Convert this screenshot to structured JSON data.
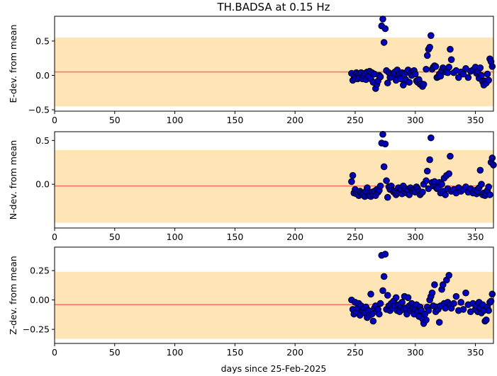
{
  "title": "TH.BADSA at 0.15 Hz",
  "xlabel": "days since 25-Feb-2025",
  "colors": {
    "band": "#ffe4b5",
    "mean_line": "#ff6f61",
    "marker_fill": "#0000cc",
    "marker_edge": "#000000"
  },
  "chart_data": [
    {
      "type": "scatter",
      "ylabel": "E-dev. from mean",
      "xlim": [
        0,
        365
      ],
      "ylim": [
        -0.52,
        0.86
      ],
      "xticks": [
        0,
        50,
        100,
        150,
        200,
        250,
        300,
        350
      ],
      "yticks": [
        -0.5,
        0.0,
        0.5
      ],
      "ytick_labels": [
        "−0.5",
        "0.0",
        "0.5"
      ],
      "band": [
        -0.45,
        0.55
      ],
      "mean": 0.05,
      "points": [
        [
          247,
          0.03
        ],
        [
          248,
          -0.07
        ],
        [
          249,
          0.0
        ],
        [
          250,
          -0.04
        ],
        [
          251,
          0.04
        ],
        [
          252,
          -0.05
        ],
        [
          253,
          0.02
        ],
        [
          254,
          -0.03
        ],
        [
          255,
          0.04
        ],
        [
          256,
          -0.05
        ],
        [
          257,
          0.0
        ],
        [
          258,
          0.03
        ],
        [
          259,
          -0.06
        ],
        [
          260,
          0.05
        ],
        [
          261,
          -0.02
        ],
        [
          262,
          0.06
        ],
        [
          263,
          -0.05
        ],
        [
          264,
          0.04
        ],
        [
          265,
          -0.1
        ],
        [
          266,
          0.02
        ],
        [
          267,
          -0.19
        ],
        [
          268,
          -0.13
        ],
        [
          269,
          -0.08
        ],
        [
          270,
          0.0
        ],
        [
          271,
          -0.02
        ],
        [
          272,
          0.72
        ],
        [
          273,
          0.82
        ],
        [
          274,
          0.48
        ],
        [
          275,
          0.68
        ],
        [
          276,
          0.07
        ],
        [
          277,
          -0.11
        ],
        [
          278,
          0.04
        ],
        [
          279,
          -0.03
        ],
        [
          280,
          0.02
        ],
        [
          281,
          -0.02
        ],
        [
          282,
          0.03
        ],
        [
          283,
          0.05
        ],
        [
          284,
          -0.07
        ],
        [
          285,
          0.08
        ],
        [
          286,
          0.01
        ],
        [
          287,
          0.03
        ],
        [
          288,
          -0.05
        ],
        [
          289,
          0.04
        ],
        [
          290,
          -0.14
        ],
        [
          291,
          0.02
        ],
        [
          292,
          -0.06
        ],
        [
          293,
          0.05
        ],
        [
          294,
          0.08
        ],
        [
          295,
          -0.1
        ],
        [
          296,
          0.03
        ],
        [
          297,
          0.0
        ],
        [
          298,
          0.06
        ],
        [
          299,
          0.07
        ],
        [
          300,
          0.02
        ],
        [
          301,
          -0.08
        ],
        [
          302,
          -0.1
        ],
        [
          303,
          -0.06
        ],
        [
          304,
          -0.13
        ],
        [
          305,
          -0.12
        ],
        [
          306,
          -0.16
        ],
        [
          307,
          -0.13
        ],
        [
          309,
          0.09
        ],
        [
          310,
          0.29
        ],
        [
          311,
          0.38
        ],
        [
          312,
          0.41
        ],
        [
          313,
          0.58
        ],
        [
          314,
          0.09
        ],
        [
          315,
          0.12
        ],
        [
          316,
          0.14
        ],
        [
          317,
          0.13
        ],
        [
          318,
          -0.03
        ],
        [
          319,
          -0.02
        ],
        [
          320,
          0.02
        ],
        [
          321,
          -0.01
        ],
        [
          322,
          0.07
        ],
        [
          323,
          0.11
        ],
        [
          324,
          0.09
        ],
        [
          325,
          0.05
        ],
        [
          326,
          0.07
        ],
        [
          327,
          0.04
        ],
        [
          328,
          0.12
        ],
        [
          329,
          0.38
        ],
        [
          330,
          0.23
        ],
        [
          332,
          0.04
        ],
        [
          334,
          0.07
        ],
        [
          336,
          -0.03
        ],
        [
          338,
          0.05
        ],
        [
          340,
          0.02
        ],
        [
          342,
          0.1
        ],
        [
          344,
          -0.03
        ],
        [
          346,
          0.06
        ],
        [
          348,
          0.08
        ],
        [
          350,
          0.12
        ],
        [
          351,
          0.03
        ],
        [
          352,
          0.06
        ],
        [
          353,
          -0.04
        ],
        [
          354,
          0.11
        ],
        [
          355,
          0.0
        ],
        [
          356,
          -0.09
        ],
        [
          357,
          -0.14
        ],
        [
          358,
          -0.08
        ],
        [
          359,
          -0.11
        ],
        [
          360,
          0.02
        ],
        [
          361,
          -0.07
        ],
        [
          362,
          0.24
        ],
        [
          363,
          0.2
        ],
        [
          364,
          0.13
        ]
      ]
    },
    {
      "type": "scatter",
      "ylabel": "N-dev. from mean",
      "xlim": [
        0,
        365
      ],
      "ylim": [
        -0.5,
        0.6
      ],
      "xticks": [
        0,
        50,
        100,
        150,
        200,
        250,
        300,
        350
      ],
      "yticks": [
        0.0,
        0.5
      ],
      "ytick_labels": [
        "0.0",
        "0.5"
      ],
      "band": [
        -0.44,
        0.39
      ],
      "mean": -0.02,
      "points": [
        [
          247,
          0.03
        ],
        [
          248,
          0.1
        ],
        [
          249,
          -0.1
        ],
        [
          250,
          -0.06
        ],
        [
          251,
          -0.11
        ],
        [
          252,
          -0.09
        ],
        [
          253,
          -0.13
        ],
        [
          254,
          -0.08
        ],
        [
          255,
          -0.1
        ],
        [
          256,
          -0.12
        ],
        [
          257,
          -0.11
        ],
        [
          258,
          -0.14
        ],
        [
          259,
          -0.08
        ],
        [
          260,
          -0.04
        ],
        [
          261,
          -0.13
        ],
        [
          262,
          -0.12
        ],
        [
          263,
          -0.14
        ],
        [
          264,
          -0.09
        ],
        [
          265,
          -0.12
        ],
        [
          266,
          -0.08
        ],
        [
          267,
          -0.13
        ],
        [
          268,
          -0.06
        ],
        [
          269,
          -0.09
        ],
        [
          270,
          -0.07
        ],
        [
          271,
          -0.02
        ],
        [
          272,
          0.47
        ],
        [
          273,
          0.57
        ],
        [
          274,
          0.2
        ],
        [
          275,
          0.46
        ],
        [
          276,
          0.04
        ],
        [
          277,
          -0.15
        ],
        [
          278,
          -0.03
        ],
        [
          279,
          -0.06
        ],
        [
          280,
          -0.02
        ],
        [
          281,
          -0.07
        ],
        [
          282,
          -0.09
        ],
        [
          283,
          -0.08
        ],
        [
          284,
          -0.12
        ],
        [
          285,
          -0.1
        ],
        [
          286,
          -0.04
        ],
        [
          287,
          -0.09
        ],
        [
          288,
          -0.06
        ],
        [
          289,
          -0.11
        ],
        [
          290,
          -0.02
        ],
        [
          291,
          -0.08
        ],
        [
          292,
          -0.05
        ],
        [
          293,
          -0.1
        ],
        [
          294,
          -0.07
        ],
        [
          295,
          -0.12
        ],
        [
          296,
          -0.04
        ],
        [
          297,
          -0.07
        ],
        [
          298,
          -0.08
        ],
        [
          299,
          -0.06
        ],
        [
          300,
          -0.09
        ],
        [
          301,
          -0.03
        ],
        [
          302,
          -0.05
        ],
        [
          303,
          -0.08
        ],
        [
          304,
          -0.12
        ],
        [
          305,
          -0.1
        ],
        [
          306,
          -0.09
        ],
        [
          307,
          0.0
        ],
        [
          309,
          0.04
        ],
        [
          310,
          0.15
        ],
        [
          311,
          -0.05
        ],
        [
          312,
          0.28
        ],
        [
          313,
          0.53
        ],
        [
          314,
          0.02
        ],
        [
          315,
          -0.02
        ],
        [
          316,
          0.03
        ],
        [
          317,
          -0.03
        ],
        [
          318,
          -0.05
        ],
        [
          319,
          -0.04
        ],
        [
          320,
          0.02
        ],
        [
          321,
          -0.1
        ],
        [
          322,
          0.0
        ],
        [
          323,
          -0.08
        ],
        [
          324,
          0.07
        ],
        [
          325,
          -0.12
        ],
        [
          326,
          0.1
        ],
        [
          327,
          -0.05
        ],
        [
          328,
          0.12
        ],
        [
          329,
          0.32
        ],
        [
          330,
          -0.08
        ],
        [
          332,
          -0.06
        ],
        [
          334,
          -0.1
        ],
        [
          336,
          -0.04
        ],
        [
          338,
          -0.08
        ],
        [
          340,
          -0.06
        ],
        [
          342,
          -0.03
        ],
        [
          344,
          -0.09
        ],
        [
          346,
          -0.05
        ],
        [
          348,
          -0.1
        ],
        [
          350,
          -0.07
        ],
        [
          351,
          -0.11
        ],
        [
          352,
          -0.08
        ],
        [
          353,
          -0.04
        ],
        [
          354,
          0.16
        ],
        [
          355,
          0.0
        ],
        [
          356,
          -0.12
        ],
        [
          357,
          -0.1
        ],
        [
          358,
          -0.13
        ],
        [
          359,
          -0.11
        ],
        [
          360,
          -0.07
        ],
        [
          361,
          -0.03
        ],
        [
          362,
          -0.12
        ],
        [
          363,
          0.25
        ],
        [
          364,
          0.3
        ],
        [
          365,
          0.22
        ]
      ]
    },
    {
      "type": "scatter",
      "ylabel": "Z-dev. from mean",
      "xlim": [
        0,
        365
      ],
      "ylim": [
        -0.37,
        0.45
      ],
      "xticks": [
        0,
        50,
        100,
        150,
        200,
        250,
        300,
        350
      ],
      "yticks": [
        -0.25,
        0.0,
        0.25
      ],
      "ytick_labels": [
        "−0.25",
        "0.00",
        "0.25"
      ],
      "band": [
        -0.33,
        0.24
      ],
      "mean": -0.04,
      "points": [
        [
          247,
          0.0
        ],
        [
          248,
          -0.08
        ],
        [
          249,
          -0.12
        ],
        [
          250,
          -0.02
        ],
        [
          251,
          -0.1
        ],
        [
          252,
          -0.07
        ],
        [
          253,
          -0.03
        ],
        [
          254,
          -0.13
        ],
        [
          255,
          -0.05
        ],
        [
          256,
          -0.09
        ],
        [
          257,
          -0.07
        ],
        [
          258,
          -0.11
        ],
        [
          259,
          -0.06
        ],
        [
          260,
          -0.15
        ],
        [
          261,
          -0.09
        ],
        [
          262,
          -0.13
        ],
        [
          263,
          0.05
        ],
        [
          264,
          -0.12
        ],
        [
          265,
          -0.18
        ],
        [
          266,
          -0.07
        ],
        [
          267,
          -0.05
        ],
        [
          268,
          -0.1
        ],
        [
          269,
          -0.08
        ],
        [
          270,
          -0.12
        ],
        [
          271,
          -0.03
        ],
        [
          272,
          0.38
        ],
        [
          273,
          0.08
        ],
        [
          274,
          0.2
        ],
        [
          275,
          0.39
        ],
        [
          276,
          -0.08
        ],
        [
          277,
          0.04
        ],
        [
          278,
          -0.05
        ],
        [
          279,
          -0.09
        ],
        [
          280,
          -0.03
        ],
        [
          281,
          -0.07
        ],
        [
          282,
          -0.01
        ],
        [
          283,
          -0.05
        ],
        [
          284,
          0.02
        ],
        [
          285,
          -0.09
        ],
        [
          286,
          -0.04
        ],
        [
          287,
          -0.1
        ],
        [
          288,
          -0.06
        ],
        [
          289,
          -0.02
        ],
        [
          290,
          -0.08
        ],
        [
          291,
          0.03
        ],
        [
          292,
          -0.07
        ],
        [
          293,
          -0.12
        ],
        [
          294,
          0.02
        ],
        [
          295,
          -0.05
        ],
        [
          296,
          -0.09
        ],
        [
          297,
          -0.03
        ],
        [
          298,
          -0.07
        ],
        [
          299,
          -0.12
        ],
        [
          300,
          -0.08
        ],
        [
          301,
          -0.04
        ],
        [
          302,
          -0.1
        ],
        [
          303,
          -0.14
        ],
        [
          304,
          -0.06
        ],
        [
          305,
          -0.09
        ],
        [
          306,
          -0.16
        ],
        [
          307,
          -0.2
        ],
        [
          308,
          -0.12
        ],
        [
          309,
          -0.17
        ],
        [
          310,
          -0.06
        ],
        [
          311,
          -0.09
        ],
        [
          312,
          0.0
        ],
        [
          313,
          0.03
        ],
        [
          314,
          0.06
        ],
        [
          315,
          -0.05
        ],
        [
          316,
          0.13
        ],
        [
          317,
          -0.1
        ],
        [
          318,
          -0.06
        ],
        [
          319,
          -0.08
        ],
        [
          320,
          -0.19
        ],
        [
          321,
          -0.05
        ],
        [
          322,
          0.09
        ],
        [
          323,
          0.13
        ],
        [
          324,
          -0.03
        ],
        [
          325,
          -0.07
        ],
        [
          326,
          0.17
        ],
        [
          327,
          -0.02
        ],
        [
          328,
          0.21
        ],
        [
          329,
          -0.04
        ],
        [
          330,
          -0.07
        ],
        [
          332,
          -0.03
        ],
        [
          334,
          0.03
        ],
        [
          336,
          -0.09
        ],
        [
          338,
          -0.02
        ],
        [
          340,
          -0.08
        ],
        [
          342,
          0.06
        ],
        [
          344,
          -0.04
        ],
        [
          346,
          -0.1
        ],
        [
          348,
          -0.03
        ],
        [
          350,
          -0.08
        ],
        [
          351,
          -0.05
        ],
        [
          352,
          -0.1
        ],
        [
          353,
          -0.02
        ],
        [
          354,
          -0.07
        ],
        [
          355,
          -0.11
        ],
        [
          356,
          -0.04
        ],
        [
          357,
          -0.09
        ],
        [
          358,
          -0.18
        ],
        [
          359,
          -0.17
        ],
        [
          360,
          -0.06
        ],
        [
          361,
          -0.09
        ],
        [
          362,
          -0.02
        ],
        [
          363,
          -0.01
        ],
        [
          364,
          0.05
        ]
      ]
    }
  ]
}
